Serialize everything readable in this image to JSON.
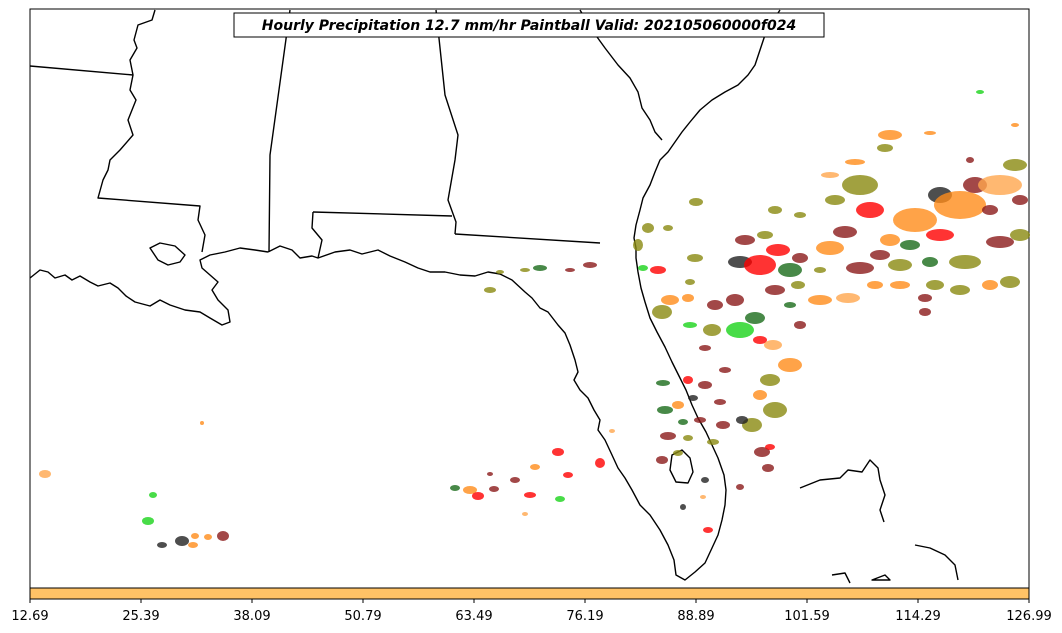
{
  "title": "Hourly Precipitation 12.7 mm/hr Paintball Valid: 202105060000f024",
  "colorbar": {
    "color": "#ffc266",
    "ticks": [
      "12.69",
      "25.39",
      "38.09",
      "50.79",
      "63.49",
      "76.19",
      "88.89",
      "101.59",
      "114.29",
      "126.99"
    ]
  },
  "palette": {
    "red": "#ff0000",
    "dark_red": "#8b1a1a",
    "orange": "#ff8c1a",
    "olive": "#8a8a10",
    "green": "#1ad31a",
    "dark_green": "#1a6b1a",
    "black": "#222222",
    "light_orange": "#ffa64d"
  }
}
